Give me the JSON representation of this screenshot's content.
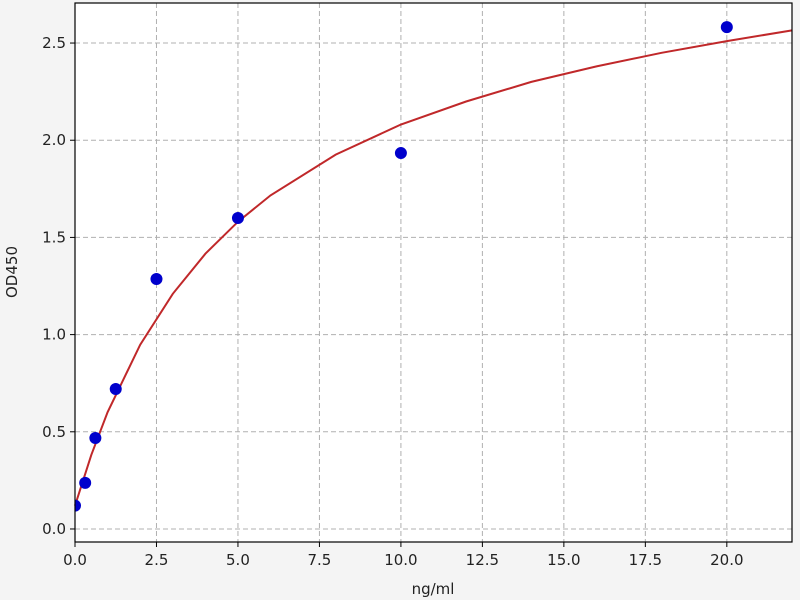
{
  "chart_data": {
    "type": "scatter",
    "title": "",
    "xlabel": "ng/ml",
    "ylabel": "OD450",
    "xlim": [
      0,
      22
    ],
    "ylim": [
      -0.067,
      2.706
    ],
    "grid": true,
    "x_ticks": [
      "0.0",
      "2.5",
      "5.0",
      "7.5",
      "10.0",
      "12.5",
      "15.0",
      "17.5",
      "20.0"
    ],
    "y_ticks": [
      "0.0",
      "0.5",
      "1.0",
      "1.5",
      "2.0",
      "2.5"
    ],
    "points": {
      "color": "#0000cc",
      "x": [
        0,
        0.3125,
        0.625,
        1.25,
        2.5,
        5,
        10,
        20
      ],
      "y": [
        0.12,
        0.237,
        0.468,
        0.72,
        1.286,
        1.6,
        1.934,
        2.582
      ]
    },
    "fit_curve": {
      "color": "#c0282a",
      "x": [
        0,
        0.5,
        1,
        2,
        3,
        4,
        5,
        6,
        8,
        10,
        12,
        14,
        16,
        18,
        20,
        22
      ],
      "y": [
        0.12,
        0.381,
        0.601,
        0.948,
        1.21,
        1.416,
        1.581,
        1.716,
        1.926,
        2.081,
        2.199,
        2.3,
        2.38,
        2.45,
        2.51,
        2.565
      ]
    }
  }
}
